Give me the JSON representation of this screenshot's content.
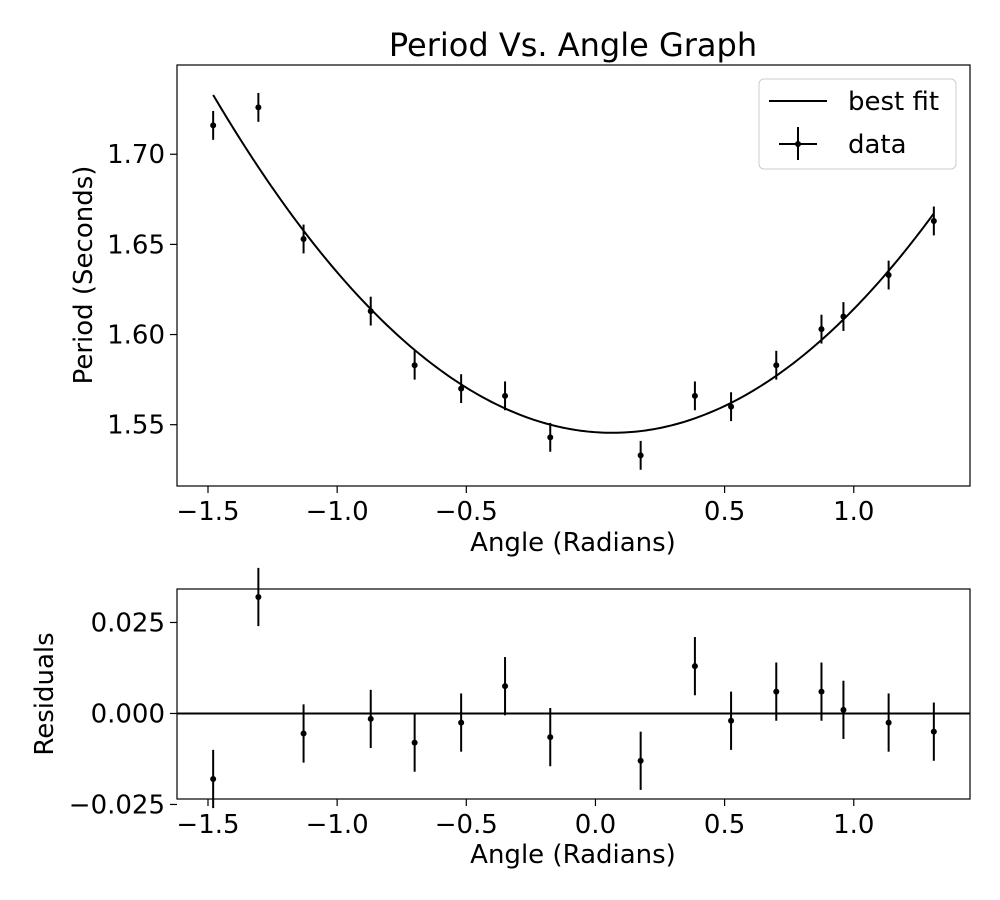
{
  "chart_data": [
    {
      "type": "scatter",
      "title": "Period Vs. Angle Graph",
      "xlabel": "Angle (Radians)",
      "ylabel": "Period (Seconds)",
      "xlim": [
        -1.62,
        1.45
      ],
      "ylim": [
        1.516,
        1.7495
      ],
      "xticks": [
        -1.5,
        -1.0,
        -0.5,
        0.5,
        1.0
      ],
      "xtick_labels": [
        "−1.5",
        "−1.0",
        "−0.5",
        "0.5",
        "1.0"
      ],
      "yticks": [
        1.55,
        1.6,
        1.65,
        1.7
      ],
      "ytick_labels": [
        "1.55",
        "1.60",
        "1.65",
        "1.70"
      ],
      "grid": false,
      "legend": {
        "placement": "top-right",
        "entries": [
          {
            "label": "best fit",
            "style": "line"
          },
          {
            "label": "data",
            "style": "errorbar"
          }
        ]
      },
      "series": [
        {
          "name": "data",
          "style": "errorbar",
          "x": [
            -1.48,
            -1.305,
            -1.13,
            -0.87,
            -0.7,
            -0.52,
            -0.35,
            -0.175,
            0.175,
            0.385,
            0.525,
            0.7,
            0.875,
            0.96,
            1.135,
            1.31
          ],
          "y": [
            1.716,
            1.726,
            1.653,
            1.613,
            1.583,
            1.57,
            1.566,
            1.543,
            1.533,
            1.566,
            1.56,
            1.583,
            1.603,
            1.61,
            1.633,
            1.663
          ],
          "yerr": 0.008
        },
        {
          "name": "best fit",
          "style": "line",
          "model": {
            "a": 0.0785,
            "x0": 0.065,
            "c": 1.5455
          },
          "x_range": [
            -1.48,
            1.31
          ]
        }
      ]
    },
    {
      "type": "scatter",
      "title": "",
      "xlabel": "Angle (Radians)",
      "ylabel": "Residuals",
      "xlim": [
        -1.62,
        1.45
      ],
      "ylim": [
        -0.0235,
        0.0342
      ],
      "xticks": [
        -1.5,
        -1.0,
        -0.5,
        0.0,
        0.5,
        1.0
      ],
      "xtick_labels": [
        "−1.5",
        "−1.0",
        "−0.5",
        "0.0",
        "0.5",
        "1.0"
      ],
      "yticks": [
        -0.025,
        0.0,
        0.025
      ],
      "ytick_labels": [
        "−0.025",
        "0.000",
        "0.025"
      ],
      "grid": false,
      "zero_line": 0.0,
      "series": [
        {
          "name": "residuals",
          "style": "errorbar",
          "x": [
            -1.48,
            -1.305,
            -1.13,
            -0.87,
            -0.7,
            -0.52,
            -0.35,
            -0.175,
            0.175,
            0.385,
            0.525,
            0.7,
            0.875,
            0.96,
            1.135,
            1.31
          ],
          "y": [
            -0.018,
            0.032,
            -0.0055,
            -0.0015,
            -0.008,
            -0.0025,
            0.0075,
            -0.0065,
            -0.013,
            0.013,
            -0.002,
            0.006,
            0.006,
            0.001,
            -0.0025,
            -0.005
          ],
          "yerr": 0.008
        }
      ]
    }
  ]
}
